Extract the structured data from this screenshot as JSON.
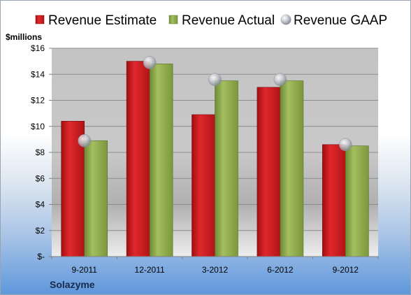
{
  "chart_data": {
    "type": "bar",
    "company": "Solazyme",
    "ylabel": "$millions",
    "categories": [
      "9-2011",
      "12-2011",
      "3-2012",
      "6-2012",
      "9-2012"
    ],
    "ylim": [
      0,
      16
    ],
    "yticks": [
      {
        "value": 0,
        "label": "$-"
      },
      {
        "value": 2,
        "label": "$2"
      },
      {
        "value": 4,
        "label": "$4"
      },
      {
        "value": 6,
        "label": "$6"
      },
      {
        "value": 8,
        "label": "$8"
      },
      {
        "value": 10,
        "label": "$10"
      },
      {
        "value": 12,
        "label": "$12"
      },
      {
        "value": 14,
        "label": "$14"
      },
      {
        "value": 16,
        "label": "$16"
      }
    ],
    "legend_position": "top",
    "grid": true,
    "series": [
      {
        "name": "Revenue Estimate",
        "kind": "bar",
        "color": "#c0181c",
        "values": [
          10.4,
          15.0,
          10.9,
          13.0,
          8.6
        ]
      },
      {
        "name": "Revenue Actual",
        "kind": "bar",
        "color": "#8aa54a",
        "values": [
          8.9,
          14.8,
          13.5,
          13.5,
          8.5
        ]
      },
      {
        "name": "Revenue GAAP",
        "kind": "marker",
        "color": "#b8bcc4",
        "values": [
          8.9,
          14.9,
          13.6,
          13.6,
          8.6
        ]
      }
    ]
  }
}
